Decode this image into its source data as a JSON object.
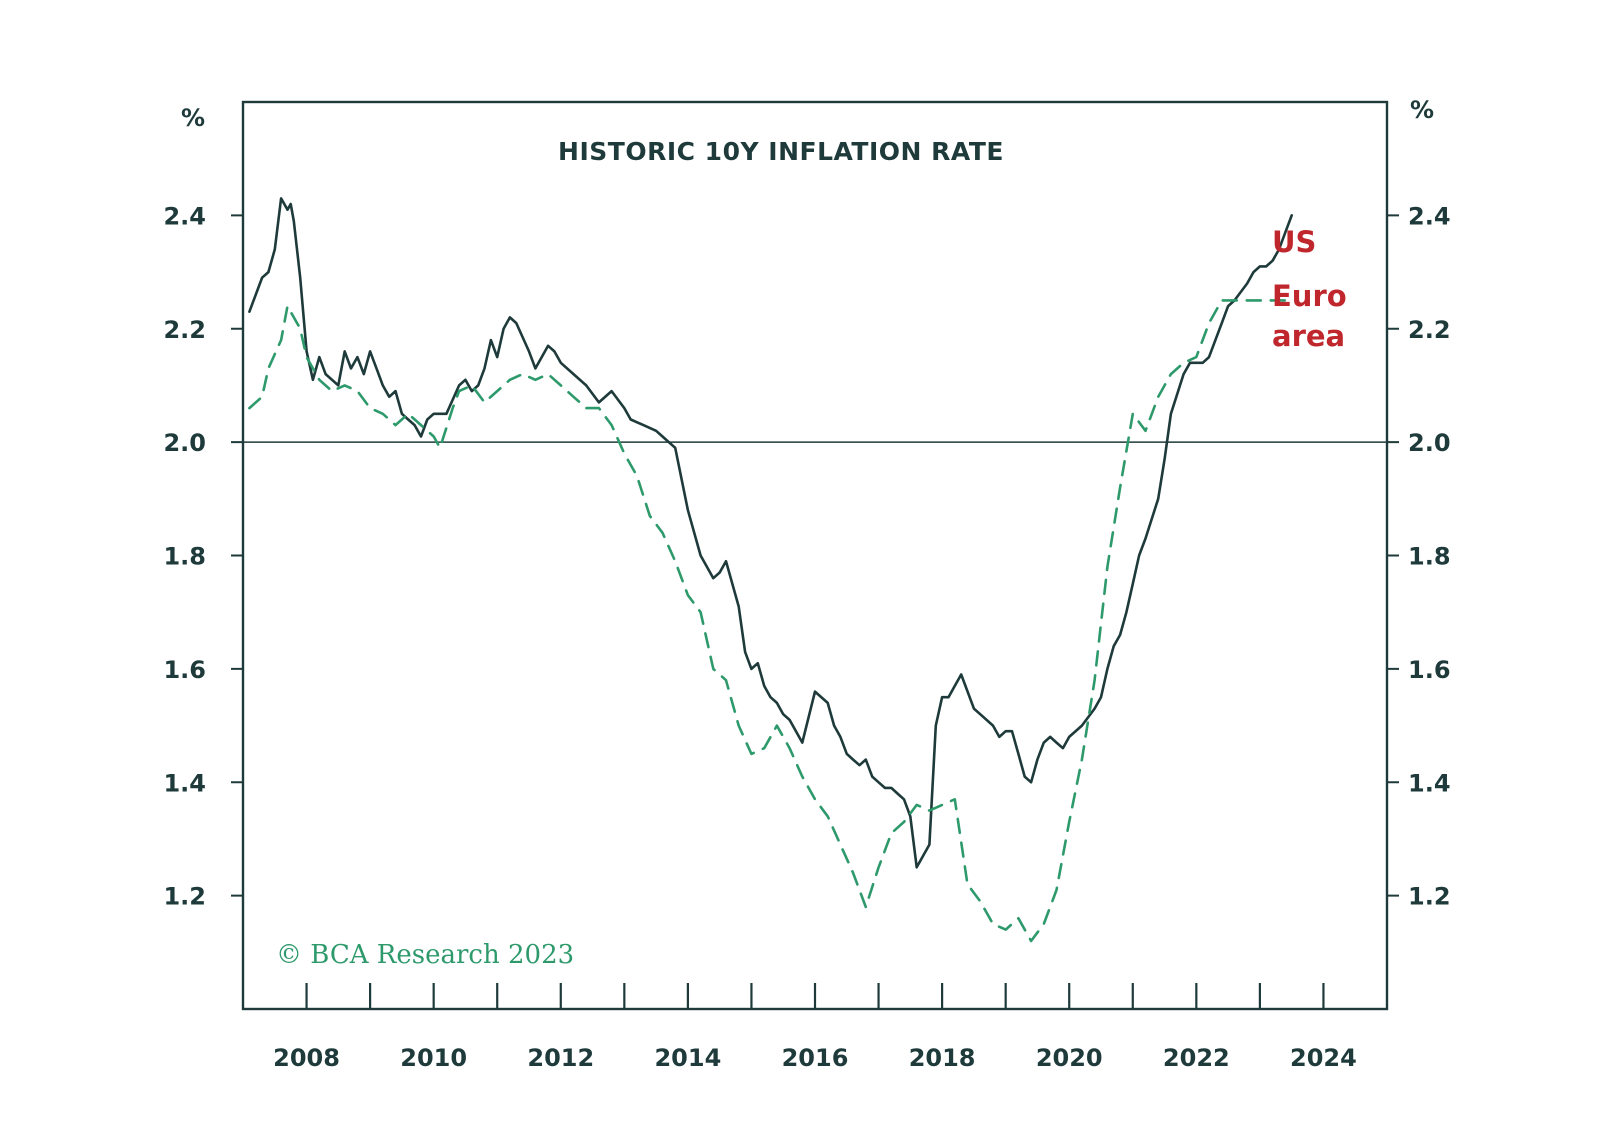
{
  "colors": {
    "us": "#1e3a3a",
    "euro": "#2e9a6c",
    "legend": "#c0272d",
    "axis": "#1e3a3a",
    "credit": "#2e9a6c"
  },
  "chart_data": {
    "type": "line",
    "title": "HISTORIC 10Y INFLATION RATE",
    "left_unit": "%",
    "right_unit": "%",
    "ylim": [
      1.0,
      2.6
    ],
    "xlim": [
      2007.0,
      2025.0
    ],
    "y_ticks": [
      1.2,
      1.4,
      1.6,
      1.8,
      2.0,
      2.2,
      2.4
    ],
    "y_tick_labels": [
      "1.2",
      "1.4",
      "1.6",
      "1.8",
      "2.0",
      "2.2",
      "2.4"
    ],
    "x_ticks": [
      2008,
      2009,
      2010,
      2011,
      2012,
      2013,
      2014,
      2015,
      2016,
      2017,
      2018,
      2019,
      2020,
      2021,
      2022,
      2023,
      2024
    ],
    "x_labels": [
      {
        "year": 2008,
        "label": "2008"
      },
      {
        "year": 2010,
        "label": "2010"
      },
      {
        "year": 2012,
        "label": "2012"
      },
      {
        "year": 2014,
        "label": "2014"
      },
      {
        "year": 2016,
        "label": "2016"
      },
      {
        "year": 2018,
        "label": "2018"
      },
      {
        "year": 2020,
        "label": "2020"
      },
      {
        "year": 2022,
        "label": "2022"
      },
      {
        "year": 2024,
        "label": "2024"
      }
    ],
    "reference_line": 2.0,
    "series": [
      {
        "name": "US",
        "style": "solid",
        "x": [
          2007.1,
          2007.3,
          2007.4,
          2007.5,
          2007.6,
          2007.7,
          2007.75,
          2007.8,
          2007.9,
          2008.0,
          2008.1,
          2008.2,
          2008.3,
          2008.5,
          2008.6,
          2008.7,
          2008.8,
          2008.9,
          2009.0,
          2009.1,
          2009.2,
          2009.3,
          2009.4,
          2009.5,
          2009.6,
          2009.7,
          2009.8,
          2009.9,
          2010.0,
          2010.2,
          2010.4,
          2010.5,
          2010.6,
          2010.7,
          2010.8,
          2010.9,
          2011.0,
          2011.1,
          2011.2,
          2011.3,
          2011.5,
          2011.6,
          2011.8,
          2011.9,
          2012.0,
          2012.2,
          2012.4,
          2012.6,
          2012.8,
          2013.0,
          2013.1,
          2013.3,
          2013.5,
          2013.6,
          2013.8,
          2014.0,
          2014.2,
          2014.4,
          2014.5,
          2014.6,
          2014.8,
          2014.9,
          2015.0,
          2015.1,
          2015.2,
          2015.3,
          2015.4,
          2015.5,
          2015.6,
          2015.8,
          2016.0,
          2016.2,
          2016.3,
          2016.4,
          2016.5,
          2016.6,
          2016.7,
          2016.8,
          2016.9,
          2017.0,
          2017.1,
          2017.2,
          2017.3,
          2017.4,
          2017.5,
          2017.6,
          2017.8,
          2017.9,
          2018.0,
          2018.1,
          2018.2,
          2018.3,
          2018.5,
          2018.6,
          2018.8,
          2018.9,
          2019.0,
          2019.1,
          2019.2,
          2019.3,
          2019.4,
          2019.5,
          2019.6,
          2019.7,
          2019.8,
          2019.9,
          2020.0,
          2020.2,
          2020.4,
          2020.5,
          2020.6,
          2020.7,
          2020.8,
          2020.9,
          2021.0,
          2021.1,
          2021.2,
          2021.4,
          2021.5,
          2021.6,
          2021.8,
          2021.9,
          2022.0,
          2022.1,
          2022.2,
          2022.3,
          2022.4,
          2022.5,
          2022.6,
          2022.8,
          2022.9,
          2023.0,
          2023.1,
          2023.2,
          2023.3,
          2023.4,
          2023.5
        ],
        "values": [
          2.23,
          2.29,
          2.3,
          2.34,
          2.43,
          2.41,
          2.42,
          2.39,
          2.29,
          2.16,
          2.11,
          2.15,
          2.12,
          2.1,
          2.16,
          2.13,
          2.15,
          2.12,
          2.16,
          2.13,
          2.1,
          2.08,
          2.09,
          2.05,
          2.04,
          2.03,
          2.01,
          2.04,
          2.05,
          2.05,
          2.1,
          2.11,
          2.09,
          2.1,
          2.13,
          2.18,
          2.15,
          2.2,
          2.22,
          2.21,
          2.16,
          2.13,
          2.17,
          2.16,
          2.14,
          2.12,
          2.1,
          2.07,
          2.09,
          2.06,
          2.04,
          2.03,
          2.02,
          2.01,
          1.99,
          1.88,
          1.8,
          1.76,
          1.77,
          1.79,
          1.71,
          1.63,
          1.6,
          1.61,
          1.57,
          1.55,
          1.54,
          1.52,
          1.51,
          1.47,
          1.56,
          1.54,
          1.5,
          1.48,
          1.45,
          1.44,
          1.43,
          1.44,
          1.41,
          1.4,
          1.39,
          1.39,
          1.38,
          1.37,
          1.34,
          1.25,
          1.29,
          1.5,
          1.55,
          1.55,
          1.57,
          1.59,
          1.53,
          1.52,
          1.5,
          1.48,
          1.49,
          1.49,
          1.45,
          1.41,
          1.4,
          1.44,
          1.47,
          1.48,
          1.47,
          1.46,
          1.48,
          1.5,
          1.53,
          1.55,
          1.6,
          1.64,
          1.66,
          1.7,
          1.75,
          1.8,
          1.83,
          1.9,
          1.97,
          2.05,
          2.12,
          2.14,
          2.14,
          2.14,
          2.15,
          2.18,
          2.21,
          2.24,
          2.25,
          2.28,
          2.3,
          2.31,
          2.31,
          2.32,
          2.34,
          2.37,
          2.4
        ]
      },
      {
        "name": "Euro area",
        "style": "dashed",
        "x": [
          2007.1,
          2007.3,
          2007.4,
          2007.6,
          2007.7,
          2007.9,
          2008.0,
          2008.2,
          2008.4,
          2008.6,
          2008.8,
          2009.0,
          2009.2,
          2009.4,
          2009.6,
          2009.8,
          2010.0,
          2010.1,
          2010.3,
          2010.4,
          2010.6,
          2010.8,
          2011.0,
          2011.2,
          2011.4,
          2011.6,
          2011.8,
          2012.0,
          2012.2,
          2012.4,
          2012.6,
          2012.8,
          2013.0,
          2013.2,
          2013.4,
          2013.6,
          2013.8,
          2014.0,
          2014.2,
          2014.4,
          2014.6,
          2014.8,
          2015.0,
          2015.2,
          2015.4,
          2015.6,
          2015.8,
          2016.0,
          2016.2,
          2016.4,
          2016.6,
          2016.8,
          2017.0,
          2017.2,
          2017.4,
          2017.6,
          2017.8,
          2018.0,
          2018.2,
          2018.4,
          2018.6,
          2018.8,
          2019.0,
          2019.2,
          2019.4,
          2019.6,
          2019.8,
          2020.0,
          2020.2,
          2020.4,
          2020.6,
          2020.8,
          2021.0,
          2021.2,
          2021.4,
          2021.6,
          2021.8,
          2022.0,
          2022.2,
          2022.4,
          2022.6,
          2022.8,
          2023.0,
          2023.2,
          2023.4,
          2023.5
        ],
        "values": [
          2.06,
          2.08,
          2.13,
          2.18,
          2.24,
          2.2,
          2.15,
          2.11,
          2.09,
          2.1,
          2.09,
          2.06,
          2.05,
          2.03,
          2.05,
          2.03,
          2.01,
          1.99,
          2.06,
          2.09,
          2.1,
          2.07,
          2.09,
          2.11,
          2.12,
          2.11,
          2.12,
          2.1,
          2.08,
          2.06,
          2.06,
          2.03,
          1.98,
          1.94,
          1.87,
          1.84,
          1.79,
          1.73,
          1.7,
          1.6,
          1.58,
          1.5,
          1.45,
          1.46,
          1.5,
          1.46,
          1.41,
          1.37,
          1.34,
          1.29,
          1.24,
          1.18,
          1.25,
          1.31,
          1.33,
          1.36,
          1.35,
          1.36,
          1.37,
          1.22,
          1.19,
          1.15,
          1.14,
          1.16,
          1.12,
          1.15,
          1.21,
          1.33,
          1.44,
          1.58,
          1.78,
          1.92,
          2.05,
          2.02,
          2.08,
          2.12,
          2.14,
          2.15,
          2.21,
          2.25,
          2.25,
          2.25,
          2.25,
          2.25,
          2.25,
          2.25
        ],
        "note_x_last": 2023.5
      }
    ],
    "legend": [
      {
        "name": "US",
        "label": "US"
      },
      {
        "name": "Euro area",
        "label_line1": "Euro",
        "label_line2": "area"
      }
    ],
    "credit": "© BCA Research 2023"
  }
}
